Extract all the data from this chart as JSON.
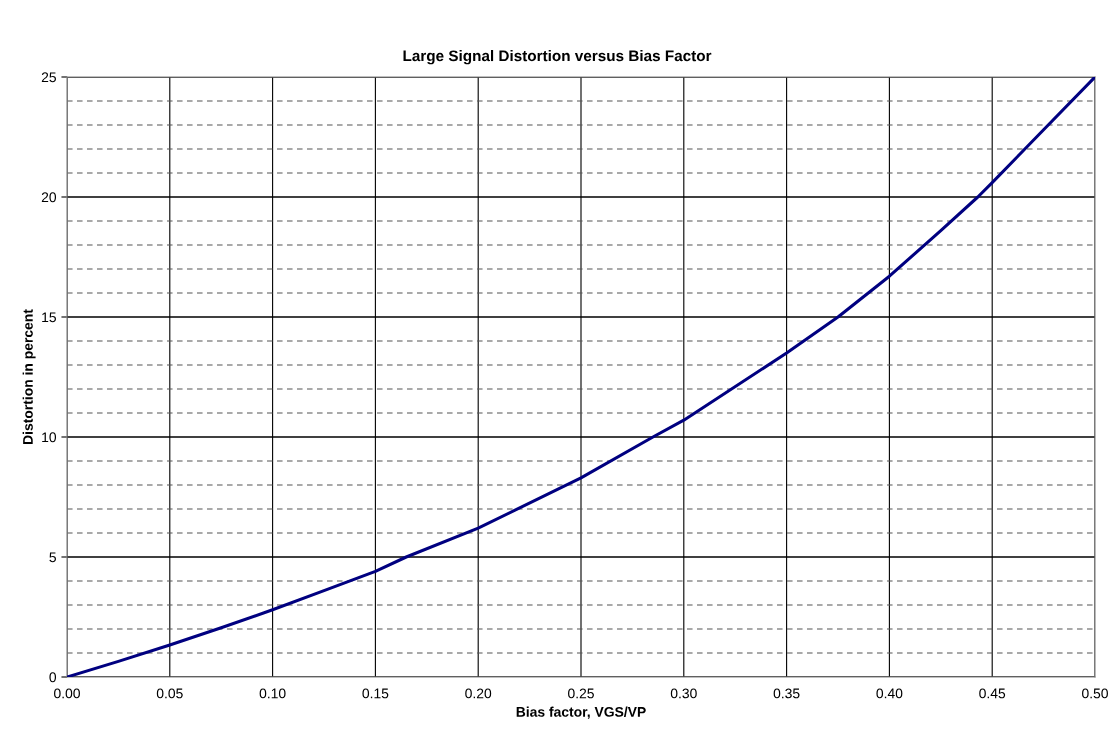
{
  "chart_data": {
    "type": "line",
    "title": "Large Signal Distortion versus Bias Factor",
    "xlabel": "Bias factor, VGS/VP",
    "ylabel": "Distortion in percent",
    "series": [
      {
        "color": "#000080",
        "x": [
          0,
          0.025,
          0.05,
          0.075,
          0.1,
          0.125,
          0.15,
          0.165,
          0.2,
          0.25,
          0.285,
          0.3,
          0.35,
          0.375,
          0.4,
          0.425,
          0.443,
          0.45,
          0.475,
          0.5
        ],
        "values": [
          0,
          0.65,
          1.33,
          2.05,
          2.8,
          3.6,
          4.4,
          5.0,
          6.2,
          8.3,
          10.0,
          10.7,
          13.5,
          15.0,
          16.7,
          18.6,
          20.0,
          20.6,
          22.8,
          25.0
        ]
      }
    ],
    "xlim": [
      0,
      0.5
    ],
    "xticks": [
      {
        "value": 0,
        "label": "0.00"
      },
      {
        "value": 0.05,
        "label": "0.05"
      },
      {
        "value": 0.1,
        "label": "0.10"
      },
      {
        "value": 0.15,
        "label": "0.15"
      },
      {
        "value": 0.2,
        "label": "0.20"
      },
      {
        "value": 0.25,
        "label": "0.25"
      },
      {
        "value": 0.3,
        "label": "0.30"
      },
      {
        "value": 0.35,
        "label": "0.35"
      },
      {
        "value": 0.4,
        "label": "0.40"
      },
      {
        "value": 0.45,
        "label": "0.45"
      },
      {
        "value": 0.5,
        "label": "0.50"
      }
    ],
    "ylim": [
      0,
      25
    ],
    "yticks": [
      0,
      {
        "value": 1,
        "label": null
      },
      {
        "value": 2,
        "label": null
      },
      {
        "value": 3,
        "label": null
      },
      {
        "value": 4,
        "label": null
      },
      5,
      {
        "value": 6,
        "label": null
      },
      {
        "value": 7,
        "label": null
      },
      {
        "value": 8,
        "label": null
      },
      {
        "value": 9,
        "label": null
      },
      10,
      {
        "value": 11,
        "label": null
      },
      {
        "value": 12,
        "label": null
      },
      {
        "value": 13,
        "label": null
      },
      {
        "value": 14,
        "label": null
      },
      15,
      {
        "value": 16,
        "label": null
      },
      {
        "value": 17,
        "label": null
      },
      {
        "value": 18,
        "label": null
      },
      {
        "value": 19,
        "label": null
      },
      20,
      {
        "value": 21,
        "label": null
      },
      {
        "value": 22,
        "label": null
      },
      {
        "value": 23,
        "label": null
      },
      {
        "value": 24,
        "label": null
      },
      25
    ],
    "grid": true,
    "marker": "none",
    "line_style": "solid"
  }
}
